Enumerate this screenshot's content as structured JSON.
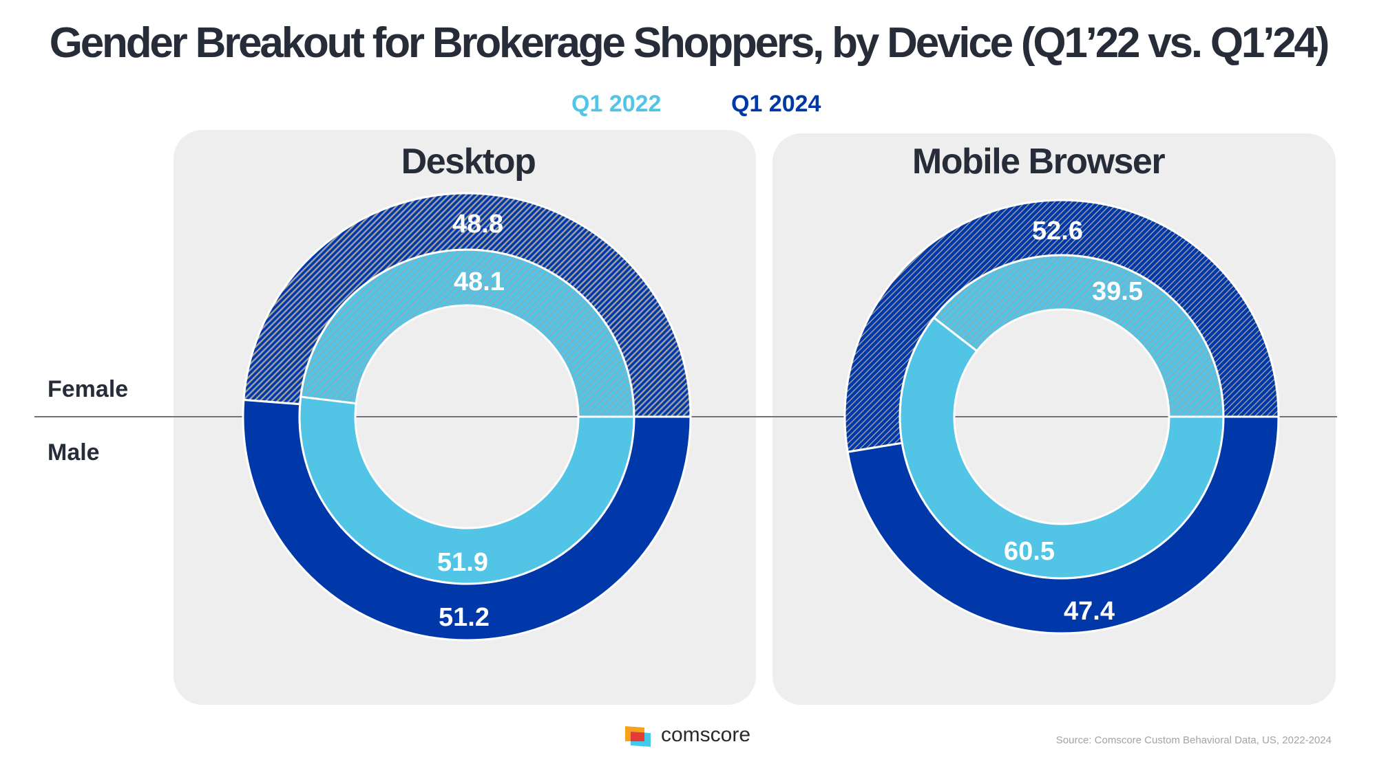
{
  "title": "Gender Breakout for Brokerage Shoppers, by Device (Q1’22 vs. Q1’24)",
  "legend": [
    {
      "label": "Q1 2022",
      "color": "#52c5e6"
    },
    {
      "label": "Q1 2024",
      "color": "#0038aa"
    }
  ],
  "row_labels": {
    "top": "Female",
    "bottom": "Male"
  },
  "panels": [
    {
      "title": "Desktop"
    },
    {
      "title": "Mobile Browser"
    }
  ],
  "colors": {
    "q1_2022": "#52c5e6",
    "q1_2024": "#0038aa",
    "hatch_grey": "#a0a0a0",
    "panel_bg": "#eeeeee",
    "text_dark": "#272d38"
  },
  "chart_data": [
    {
      "type": "pie",
      "subtype": "nested-donut",
      "title": "Desktop",
      "unit": "%",
      "categories": [
        "Female",
        "Male"
      ],
      "series": [
        {
          "name": "Q1 2022",
          "ring": "inner",
          "values": [
            48.1,
            51.9
          ],
          "labels": [
            "48.1",
            "51.9"
          ]
        },
        {
          "name": "Q1 2024",
          "ring": "outer",
          "values": [
            48.8,
            51.2
          ],
          "labels": [
            "48.8",
            "51.2"
          ]
        }
      ]
    },
    {
      "type": "pie",
      "subtype": "nested-donut",
      "title": "Mobile Browser",
      "unit": "%",
      "categories": [
        "Female",
        "Male"
      ],
      "series": [
        {
          "name": "Q1 2022",
          "ring": "inner",
          "values": [
            39.5,
            60.5
          ],
          "labels": [
            "39.5",
            "60.5"
          ]
        },
        {
          "name": "Q1 2024",
          "ring": "outer",
          "values": [
            52.6,
            47.4
          ],
          "labels": [
            "52.6",
            "47.4"
          ]
        }
      ]
    }
  ],
  "footer": {
    "brand": "comscore",
    "source": "Source: Comscore Custom Behavioral Data, US, 2022-2024"
  }
}
